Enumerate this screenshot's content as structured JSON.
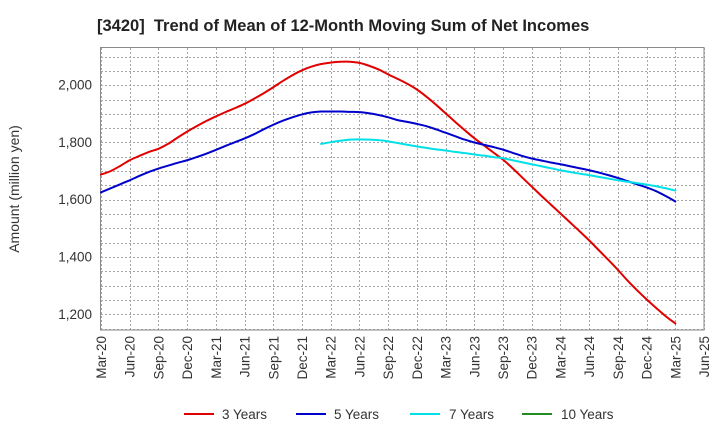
{
  "chart_data": {
    "type": "line",
    "title": "[3420]  Trend of Mean of 12-Month Moving Sum of Net Incomes",
    "ylabel": "Amount (million yen)",
    "x_ticks": [
      "Mar-20",
      "Jun-20",
      "Sep-20",
      "Dec-20",
      "Mar-21",
      "Jun-21",
      "Sep-21",
      "Dec-21",
      "Mar-22",
      "Jun-22",
      "Sep-22",
      "Dec-22",
      "Mar-23",
      "Jun-23",
      "Sep-23",
      "Dec-23",
      "Mar-24",
      "Jun-24",
      "Sep-24",
      "Dec-24",
      "Mar-25",
      "Jun-25"
    ],
    "x_tick_step_months": 3,
    "y_ticks": [
      1200,
      1400,
      1600,
      1800,
      2000
    ],
    "y_tick_labels": [
      "1,200",
      "1,400",
      "1,600",
      "1,800",
      "2,000"
    ],
    "y_grid_step": 50,
    "ylim": [
      1145,
      2130
    ],
    "grid": true,
    "legend_position": "bottom",
    "series": [
      {
        "name": "3 Years",
        "color": "#e00000",
        "values": [
          1688,
          1700,
          1718,
          1738,
          1753,
          1767,
          1778,
          1795,
          1817,
          1838,
          1857,
          1875,
          1891,
          1906,
          1920,
          1935,
          1953,
          1972,
          1993,
          2015,
          2035,
          2052,
          2065,
          2074,
          2079,
          2082,
          2082,
          2078,
          2068,
          2055,
          2038,
          2022,
          2005,
          1985,
          1960,
          1932,
          1902,
          1872,
          1843,
          1815,
          1790,
          1765,
          1740,
          1710,
          1678,
          1646,
          1614,
          1583,
          1552,
          1521,
          1490,
          1458,
          1424,
          1390,
          1355,
          1318,
          1284,
          1252,
          1222,
          1193,
          1168
        ]
      },
      {
        "name": "5 Years",
        "color": "#0000cc",
        "values": [
          1626,
          1640,
          1654,
          1668,
          1683,
          1697,
          1709,
          1719,
          1729,
          1738,
          1749,
          1761,
          1774,
          1788,
          1801,
          1814,
          1829,
          1846,
          1862,
          1876,
          1888,
          1898,
          1905,
          1908,
          1908,
          1908,
          1907,
          1906,
          1902,
          1896,
          1888,
          1878,
          1872,
          1865,
          1857,
          1846,
          1834,
          1822,
          1810,
          1800,
          1792,
          1784,
          1775,
          1764,
          1753,
          1744,
          1737,
          1730,
          1724,
          1717,
          1710,
          1703,
          1695,
          1686,
          1676,
          1665,
          1654,
          1643,
          1630,
          1613,
          1594
        ]
      },
      {
        "name": "7 Years",
        "color": "#00e0e8",
        "values": [
          null,
          null,
          null,
          null,
          null,
          null,
          null,
          null,
          null,
          null,
          null,
          null,
          null,
          null,
          null,
          null,
          null,
          null,
          null,
          null,
          null,
          null,
          null,
          1795,
          1801,
          1806,
          1810,
          1811,
          1810,
          1808,
          1804,
          1798,
          1792,
          1786,
          1781,
          1776,
          1772,
          1767,
          1763,
          1758,
          1754,
          1749,
          1745,
          1738,
          1731,
          1724,
          1717,
          1710,
          1703,
          1697,
          1691,
          1686,
          1680,
          1674,
          1668,
          1663,
          1658,
          1653,
          1647,
          1640,
          1632
        ]
      },
      {
        "name": "10 Years",
        "color": "#228b22",
        "values": []
      }
    ]
  }
}
